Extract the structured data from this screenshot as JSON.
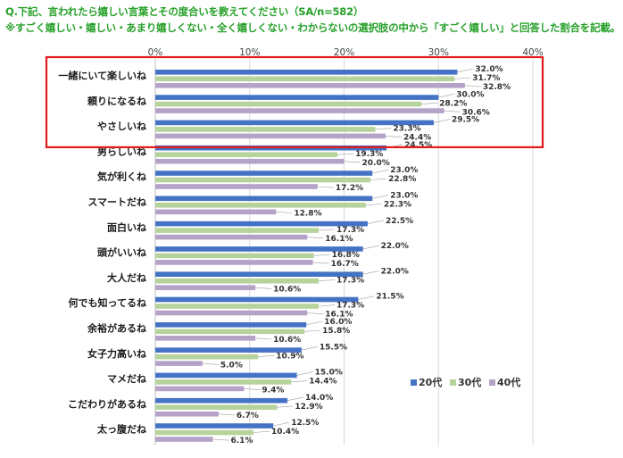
{
  "title": {
    "line1": "Q.下記、言われたら嬉しい言葉とその度合いを教えてください（SA/n=582）",
    "line2": "※すごく嬉しい・嬉しい・あまり嬉しくない・全く嬉しくない・わからないの選択肢の中から「すごく嬉しい」と回答した割合を記載。"
  },
  "colors": {
    "series": [
      "#4472c4",
      "#b6d39b",
      "#b4a2c7"
    ],
    "highlight": "#e3191c",
    "title": "#27a12a"
  },
  "chart_data": {
    "type": "bar",
    "orientation": "horizontal",
    "title": "Q.下記、言われたら嬉しい言葉とその度合いを教えてください（SA/n=582）",
    "xlim": [
      0,
      40
    ],
    "ticks": [
      "0%",
      "10%",
      "20%",
      "30%",
      "40%"
    ],
    "tick_values": [
      0,
      10,
      20,
      30,
      40
    ],
    "highlighted_count": 3,
    "categories": [
      "一緒にいて楽しいね",
      "頼りになるね",
      "やさしいね",
      "男らしいね",
      "気が利くね",
      "スマートだね",
      "面白いね",
      "頭がいいね",
      "大人だね",
      "何でも知ってるね",
      "余裕があるね",
      "女子力高いね",
      "マメだね",
      "こだわりがあるね",
      "太っ腹だね"
    ],
    "series": [
      {
        "name": "20代",
        "values": [
          32.0,
          30.0,
          29.5,
          24.5,
          23.0,
          23.0,
          22.5,
          22.0,
          22.0,
          21.5,
          16.0,
          15.5,
          15.0,
          14.0,
          12.5
        ],
        "labels": [
          "32.0%",
          "30.0%",
          "29.5%",
          "24.5%",
          "23.0%",
          "23.0%",
          "22.5%",
          "22.0%",
          "22.0%",
          "21.5%",
          "16.0%",
          "15.5%",
          "15.0%",
          "14.0%",
          "12.5%"
        ]
      },
      {
        "name": "30代",
        "values": [
          31.7,
          28.2,
          23.3,
          19.3,
          22.8,
          22.3,
          17.3,
          16.8,
          17.3,
          17.3,
          15.8,
          10.9,
          14.4,
          12.9,
          10.4
        ],
        "labels": [
          "31.7%",
          "28.2%",
          "23.3%",
          "19.3%",
          "22.8%",
          "22.3%",
          "17.3%",
          "16.8%",
          "17.3%",
          "17.3%",
          "15.8%",
          "10.9%",
          "14.4%",
          "12.9%",
          "10.4%"
        ]
      },
      {
        "name": "40代",
        "values": [
          32.8,
          30.6,
          24.4,
          20.0,
          17.2,
          12.8,
          16.1,
          16.7,
          10.6,
          16.1,
          10.6,
          5.0,
          9.4,
          6.7,
          6.1
        ],
        "labels": [
          "32.8%",
          "30.6%",
          "24.4%",
          "20.0%",
          "17.2%",
          "12.8%",
          "16.1%",
          "16.7%",
          "10.6%",
          "16.1%",
          "10.6%",
          "5.0%",
          "9.4%",
          "6.7%",
          "6.1%"
        ]
      }
    ],
    "legend": [
      "20代",
      "30代",
      "40代"
    ],
    "legend_position": "right"
  }
}
